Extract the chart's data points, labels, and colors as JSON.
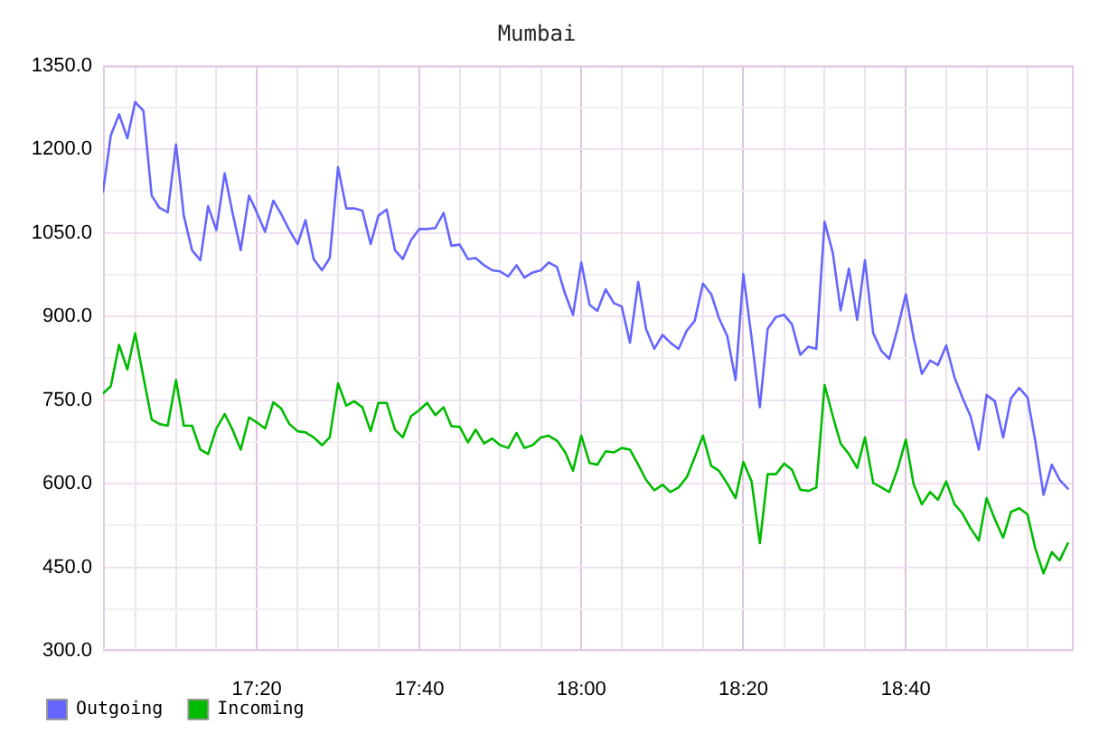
{
  "chart_data": {
    "type": "line",
    "title": "Mumbai",
    "x": [
      17.017,
      17.033,
      17.05,
      17.067,
      17.083,
      17.1,
      17.117,
      17.133,
      17.15,
      17.167,
      17.183,
      17.2,
      17.217,
      17.233,
      17.25,
      17.267,
      17.283,
      17.3,
      17.317,
      17.333,
      17.35,
      17.367,
      17.383,
      17.4,
      17.417,
      17.433,
      17.45,
      17.467,
      17.483,
      17.5,
      17.517,
      17.533,
      17.55,
      17.567,
      17.583,
      17.6,
      17.617,
      17.633,
      17.65,
      17.667,
      17.683,
      17.7,
      17.717,
      17.733,
      17.75,
      17.767,
      17.783,
      17.8,
      17.817,
      17.833,
      17.85,
      17.867,
      17.883,
      17.9,
      17.917,
      17.933,
      17.95,
      17.967,
      17.983,
      18,
      18.017,
      18.033,
      18.05,
      18.067,
      18.083,
      18.1,
      18.117,
      18.133,
      18.15,
      18.167,
      18.183,
      18.2,
      18.217,
      18.233,
      18.25,
      18.267,
      18.283,
      18.3,
      18.317,
      18.333,
      18.35,
      18.367,
      18.383,
      18.4,
      18.417,
      18.433,
      18.45,
      18.467,
      18.483,
      18.5,
      18.517,
      18.533,
      18.55,
      18.567,
      18.583,
      18.6,
      18.617,
      18.633,
      18.65,
      18.667,
      18.683,
      18.7,
      18.717,
      18.733,
      18.75,
      18.767,
      18.783,
      18.8,
      18.817,
      18.833,
      18.85,
      18.867,
      18.883,
      18.9,
      18.917,
      18.933,
      18.95,
      18.967,
      18.983,
      19
    ],
    "series": [
      {
        "name": "Outgoing",
        "color": "#6666ff",
        "values": [
          1124,
          1225,
          1263,
          1220,
          1285,
          1269,
          1117,
          1095,
          1087,
          1209,
          1081,
          1019,
          1001,
          1098,
          1055,
          1157,
          1087,
          1019,
          1117,
          1087,
          1052,
          1108,
          1084,
          1055,
          1030,
          1073,
          1003,
          983,
          1005,
          1168,
          1094,
          1094,
          1090,
          1030,
          1081,
          1092,
          1019,
          1003,
          1037,
          1057,
          1057,
          1059,
          1086,
          1027,
          1029,
          1003,
          1005,
          992,
          983,
          981,
          972,
          992,
          970,
          979,
          983,
          997,
          989,
          940,
          903,
          997,
          921,
          910,
          949,
          924,
          918,
          853,
          962,
          878,
          842,
          867,
          853,
          842,
          875,
          892,
          959,
          940,
          897,
          865,
          786,
          976,
          862,
          737,
          878,
          899,
          903,
          886,
          831,
          846,
          842,
          1070,
          1014,
          911,
          986,
          894,
          1001,
          870,
          838,
          824,
          878,
          940,
          862,
          797,
          821,
          813,
          848,
          791,
          755,
          721,
          661,
          759,
          748,
          683,
          753,
          772,
          755,
          677,
          580,
          634,
          607,
          591
        ]
      },
      {
        "name": "Incoming",
        "color": "#00bb00",
        "values": [
          762,
          775,
          849,
          805,
          870,
          791,
          715,
          707,
          704,
          786,
          704,
          704,
          661,
          653,
          699,
          725,
          697,
          661,
          719,
          710,
          699,
          746,
          735,
          707,
          694,
          692,
          683,
          669,
          683,
          780,
          740,
          748,
          737,
          694,
          745,
          745,
          697,
          683,
          721,
          732,
          745,
          723,
          737,
          703,
          702,
          674,
          697,
          672,
          681,
          669,
          664,
          691,
          664,
          669,
          683,
          686,
          677,
          656,
          623,
          686,
          637,
          634,
          658,
          656,
          664,
          661,
          634,
          607,
          588,
          598,
          585,
          593,
          612,
          647,
          686,
          632,
          623,
          600,
          574,
          639,
          604,
          493,
          617,
          617,
          636,
          625,
          589,
          587,
          593,
          777,
          721,
          672,
          653,
          628,
          683,
          601,
          593,
          585,
          626,
          679,
          599,
          563,
          585,
          571,
          604,
          563,
          547,
          520,
          498,
          574,
          536,
          503,
          549,
          556,
          545,
          484,
          439,
          477,
          462,
          493
        ]
      }
    ],
    "xlim": [
      17.017,
      19.012
    ],
    "xticks": [
      {
        "value": 17.083,
        "label": null
      },
      {
        "value": 17.167,
        "label": null
      },
      {
        "value": 17.25,
        "label": null
      },
      {
        "value": 17.333,
        "label": "17:20"
      },
      {
        "value": 17.417,
        "label": null
      },
      {
        "value": 17.5,
        "label": null
      },
      {
        "value": 17.583,
        "label": null
      },
      {
        "value": 17.667,
        "label": "17:40"
      },
      {
        "value": 17.75,
        "label": null
      },
      {
        "value": 17.833,
        "label": null
      },
      {
        "value": 17.917,
        "label": null
      },
      {
        "value": 18,
        "label": "18:00"
      },
      {
        "value": 18.083,
        "label": null
      },
      {
        "value": 18.167,
        "label": null
      },
      {
        "value": 18.25,
        "label": null
      },
      {
        "value": 18.333,
        "label": "18:20"
      },
      {
        "value": 18.417,
        "label": null
      },
      {
        "value": 18.5,
        "label": null
      },
      {
        "value": 18.583,
        "label": null
      },
      {
        "value": 18.667,
        "label": "18:40"
      },
      {
        "value": 18.75,
        "label": null
      },
      {
        "value": 18.833,
        "label": null
      },
      {
        "value": 18.917,
        "label": null
      }
    ],
    "ylim": [
      300,
      1350
    ],
    "yticks": [
      {
        "value": 300,
        "label": "300.0"
      },
      {
        "value": 375,
        "label": null
      },
      {
        "value": 450,
        "label": "450.0"
      },
      {
        "value": 525,
        "label": null
      },
      {
        "value": 600,
        "label": "600.0"
      },
      {
        "value": 675,
        "label": null
      },
      {
        "value": 750,
        "label": "750.0"
      },
      {
        "value": 825,
        "label": null
      },
      {
        "value": 900,
        "label": "900.0"
      },
      {
        "value": 975,
        "label": null
      },
      {
        "value": 1050,
        "label": "1050.0"
      },
      {
        "value": 1125,
        "label": null
      },
      {
        "value": 1200,
        "label": "1200.0"
      },
      {
        "value": 1275,
        "label": null
      },
      {
        "value": 1350,
        "label": "1350.0"
      }
    ],
    "grid": true,
    "legend": "bottom left",
    "marker": "none"
  }
}
